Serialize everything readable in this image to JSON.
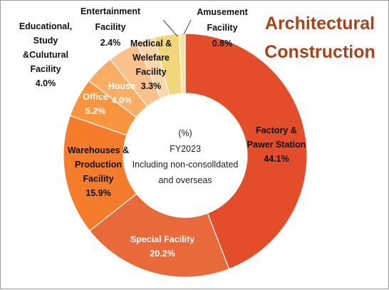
{
  "chart_data": {
    "type": "pie",
    "title_lines": [
      "Architectural",
      "Construction"
    ],
    "title_color": "#a8421a",
    "center_lines": [
      "(%)",
      "FY2023",
      "Including non-consolldated",
      "and overseas"
    ],
    "slices": [
      {
        "label_lines": [
          "Factory &",
          "Pawer Station"
        ],
        "value_label": "44.1%",
        "value": 44.1,
        "color": "#e44d2a",
        "text_color": "#111111"
      },
      {
        "label_lines": [
          "Special Facility"
        ],
        "value_label": "20.2%",
        "value": 20.2,
        "color": "#e8693a",
        "text_color": "#ffffff"
      },
      {
        "label_lines": [
          "Warehouses &",
          "Production",
          "Facility"
        ],
        "value_label": "15.9%",
        "value": 15.9,
        "color": "#f57c2a",
        "text_color": "#111111"
      },
      {
        "label_lines": [
          "Office"
        ],
        "value_label": "5.2%",
        "value": 5.2,
        "color": "#f9953f",
        "text_color": "#ffffff"
      },
      {
        "label_lines": [
          "House"
        ],
        "value_label": "4.0%",
        "value": 4.0,
        "color": "#fbad63",
        "text_color": "#ffffff"
      },
      {
        "label_lines": [
          "Educational,",
          "Study",
          "&Culutural",
          "Facility"
        ],
        "value_label": "4.0%",
        "value": 4.0,
        "color": "#fcc18a",
        "text_color": "#111111"
      },
      {
        "label_lines": [
          "Entertainment",
          "Facility"
        ],
        "value_label": "2.4%",
        "value": 2.4,
        "color": "#fdd6aa",
        "text_color": "#111111"
      },
      {
        "label_lines": [
          "Medical &",
          "Welefare",
          "Facility"
        ],
        "value_label": "3.3%",
        "value": 3.3,
        "color": "#f2d77a",
        "text_color": "#111111"
      },
      {
        "label_lines": [
          "Amusement",
          "Facility"
        ],
        "value_label": "0.8%",
        "value": 0.8,
        "color": "#f6e3a0",
        "text_color": "#111111"
      }
    ]
  }
}
